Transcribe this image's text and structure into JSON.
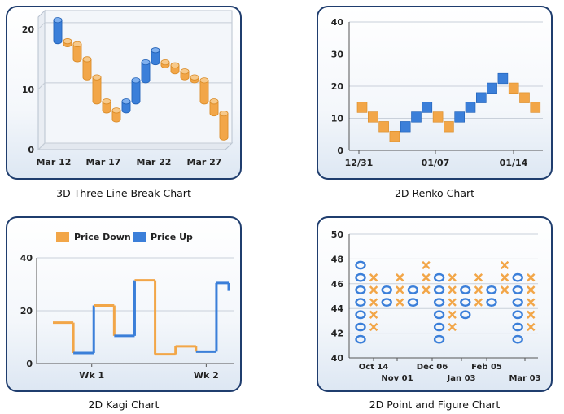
{
  "captions": {
    "three_line_break": "3D Three Line Break Chart",
    "renko": "2D Renko Chart",
    "kagi": "2D Kagi Chart",
    "pnf": "2D Point and Figure Chart"
  },
  "colors": {
    "up": "#3b7fd9",
    "down": "#f2a648",
    "frame": "#1f3d6e"
  },
  "chart_data": [
    {
      "type": "bar",
      "name": "three_line_break",
      "ylim": [
        0,
        22
      ],
      "yticks": [
        0,
        10,
        20
      ],
      "xtick_labels": [
        "Mar 12",
        "Mar 17",
        "Mar 22",
        "Mar 27"
      ],
      "bricks": [
        {
          "from": 18,
          "to": 21.5,
          "dir": "up"
        },
        {
          "from": 18,
          "to": 17.5,
          "dir": "down"
        },
        {
          "from": 17.5,
          "to": 15,
          "dir": "down"
        },
        {
          "from": 15,
          "to": 12,
          "dir": "down"
        },
        {
          "from": 12,
          "to": 8,
          "dir": "down"
        },
        {
          "from": 8,
          "to": 6.5,
          "dir": "down"
        },
        {
          "from": 6.5,
          "to": 5,
          "dir": "down"
        },
        {
          "from": 6.5,
          "to": 8,
          "dir": "up"
        },
        {
          "from": 8,
          "to": 11.5,
          "dir": "up"
        },
        {
          "from": 11.5,
          "to": 14.5,
          "dir": "up"
        },
        {
          "from": 14.5,
          "to": 16.5,
          "dir": "up"
        },
        {
          "from": 14.5,
          "to": 14,
          "dir": "down"
        },
        {
          "from": 14,
          "to": 13,
          "dir": "down"
        },
        {
          "from": 13,
          "to": 12,
          "dir": "down"
        },
        {
          "from": 12,
          "to": 11.5,
          "dir": "down"
        },
        {
          "from": 11.5,
          "to": 8,
          "dir": "down"
        },
        {
          "from": 8,
          "to": 6,
          "dir": "down"
        },
        {
          "from": 6,
          "to": 2,
          "dir": "down"
        }
      ]
    },
    {
      "type": "bar",
      "name": "renko",
      "ylim": [
        0,
        40
      ],
      "yticks": [
        0,
        10,
        20,
        30,
        40
      ],
      "xtick_labels": [
        "12/31",
        "01/07",
        "01/14"
      ],
      "brick_size": 3.2,
      "bricks": [
        {
          "top": 15,
          "dir": "down"
        },
        {
          "top": 12,
          "dir": "down"
        },
        {
          "top": 9,
          "dir": "down"
        },
        {
          "top": 6,
          "dir": "down"
        },
        {
          "top": 9,
          "dir": "up"
        },
        {
          "top": 12,
          "dir": "up"
        },
        {
          "top": 15,
          "dir": "up"
        },
        {
          "top": 12,
          "dir": "down"
        },
        {
          "top": 9,
          "dir": "down"
        },
        {
          "top": 12,
          "dir": "up"
        },
        {
          "top": 15,
          "dir": "up"
        },
        {
          "top": 18,
          "dir": "up"
        },
        {
          "top": 21,
          "dir": "up"
        },
        {
          "top": 24,
          "dir": "up"
        },
        {
          "top": 21,
          "dir": "down"
        },
        {
          "top": 18,
          "dir": "down"
        },
        {
          "top": 15,
          "dir": "down"
        }
      ]
    },
    {
      "type": "line",
      "name": "kagi",
      "ylim": [
        0,
        40
      ],
      "yticks": [
        0,
        20,
        40
      ],
      "xtick_labels": [
        "Wk 1",
        "Wk 2"
      ],
      "legend": [
        "Price Down",
        "Price Up"
      ],
      "legend_position": "top",
      "points": [
        {
          "x": 0,
          "y": 15.5
        },
        {
          "x": 1,
          "y": 4
        },
        {
          "x": 2,
          "y": 22
        },
        {
          "x": 3,
          "y": 10.5
        },
        {
          "x": 4,
          "y": 31.5
        },
        {
          "x": 5,
          "y": 3.5
        },
        {
          "x": 6,
          "y": 6.5
        },
        {
          "x": 7,
          "y": 4.5
        },
        {
          "x": 8,
          "y": 30.5
        },
        {
          "x": 8.6,
          "y": 27.5
        }
      ],
      "segment_dirs": [
        "down",
        "up",
        "down",
        "up",
        "down",
        "down",
        "down",
        "up",
        "up"
      ]
    },
    {
      "type": "scatter",
      "name": "point_and_figure",
      "ylim": [
        40,
        50
      ],
      "yticks": [
        40,
        42,
        44,
        46,
        48,
        50
      ],
      "xtick_labels_top": [
        "Oct 14",
        "Dec 06",
        "Feb 05"
      ],
      "xtick_labels_bottom": [
        "Nov 01",
        "Jan 03",
        "Mar 03"
      ],
      "box_size": 1,
      "columns": [
        {
          "type": "O",
          "high": 47.5,
          "low": 41
        },
        {
          "type": "X",
          "high": 46.5,
          "low": 42
        },
        {
          "type": "O",
          "high": 45.5,
          "low": 44.5
        },
        {
          "type": "X",
          "high": 46.5,
          "low": 44.5
        },
        {
          "type": "O",
          "high": 45.5,
          "low": 44.5
        },
        {
          "type": "X",
          "high": 47.5,
          "low": 45.5
        },
        {
          "type": "O",
          "high": 46.5,
          "low": 41
        },
        {
          "type": "X",
          "high": 46.5,
          "low": 42
        },
        {
          "type": "O",
          "high": 45.5,
          "low": 43.5
        },
        {
          "type": "X",
          "high": 46.5,
          "low": 44.5
        },
        {
          "type": "O",
          "high": 45.5,
          "low": 44.5
        },
        {
          "type": "X",
          "high": 47.5,
          "low": 45.5
        },
        {
          "type": "O",
          "high": 46.5,
          "low": 41
        },
        {
          "type": "X",
          "high": 46.5,
          "low": 42
        }
      ]
    }
  ]
}
